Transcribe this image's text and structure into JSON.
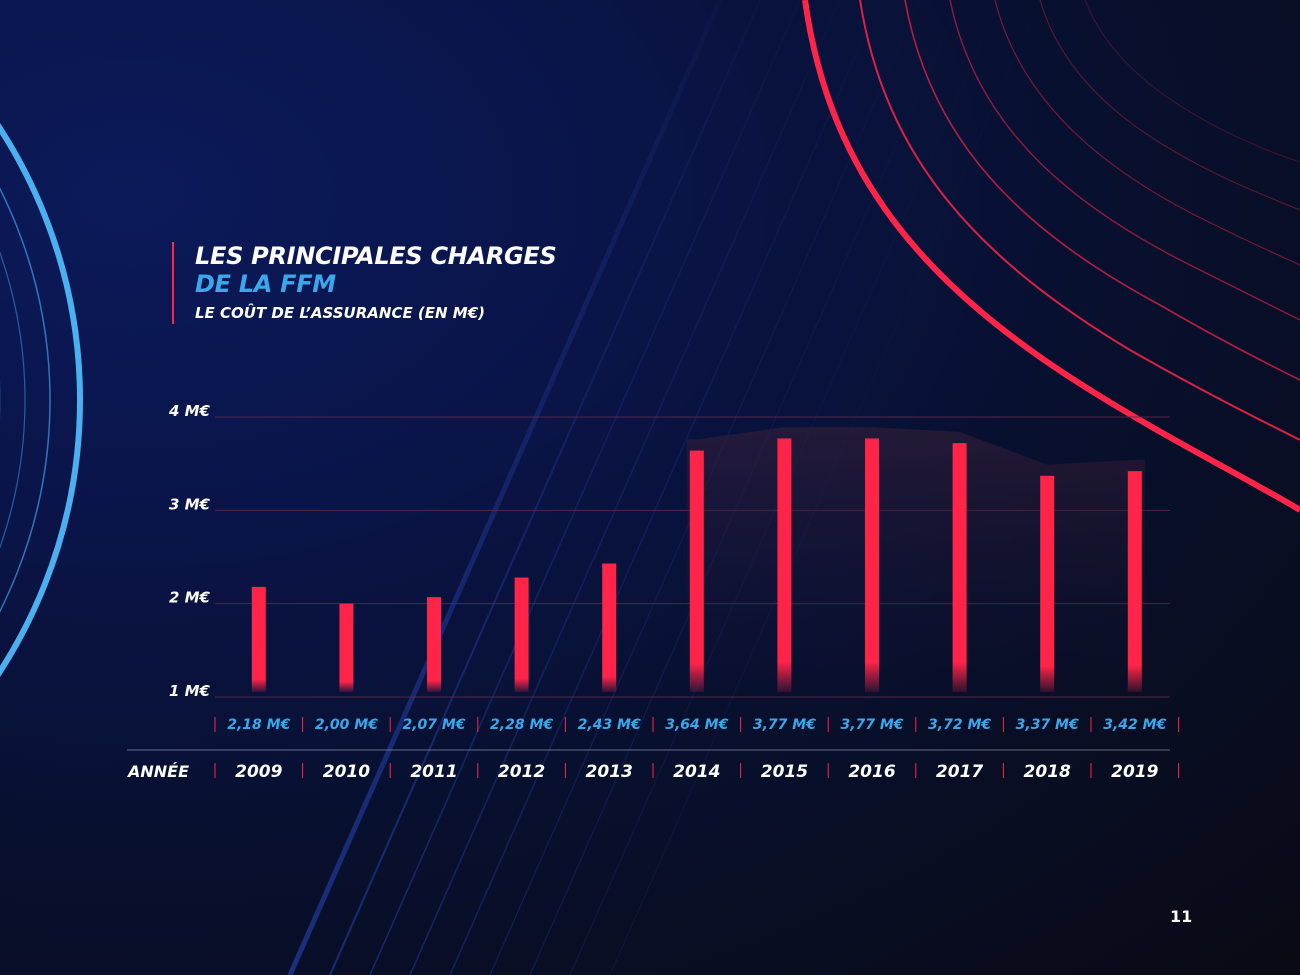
{
  "title": {
    "line1": "LES PRINCIPALES CHARGES",
    "line2": "DE LA FFM",
    "subtitle": "LE COÛT DE L’ASSURANCE (EN M€)"
  },
  "page_number": "11",
  "colors": {
    "accent_red": "#ff2448",
    "accent_blue": "#3aa8ec",
    "background_dark": "#0a1448"
  },
  "chart_data": {
    "type": "bar",
    "title": "LE COÛT DE L’ASSURANCE (EN M€)",
    "x_axis_label": "ANNÉE",
    "categories": [
      "2009",
      "2010",
      "2011",
      "2012",
      "2013",
      "2014",
      "2015",
      "2016",
      "2017",
      "2018",
      "2019"
    ],
    "values": [
      2.18,
      2.0,
      2.07,
      2.28,
      2.43,
      3.64,
      3.77,
      3.77,
      3.72,
      3.37,
      3.42
    ],
    "value_labels": [
      "2,18 M€",
      "2,00 M€",
      "2,07 M€",
      "2,28 M€",
      "2,43 M€",
      "3,64 M€",
      "3,77 M€",
      "3,77 M€",
      "3,72 M€",
      "3,37 M€",
      "3,42 M€"
    ],
    "y_ticks": [
      1,
      2,
      3,
      4
    ],
    "y_tick_labels": [
      "1 M€",
      "2 M€",
      "3 M€",
      "4 M€"
    ],
    "ylim": [
      1,
      4
    ],
    "grid": true
  }
}
